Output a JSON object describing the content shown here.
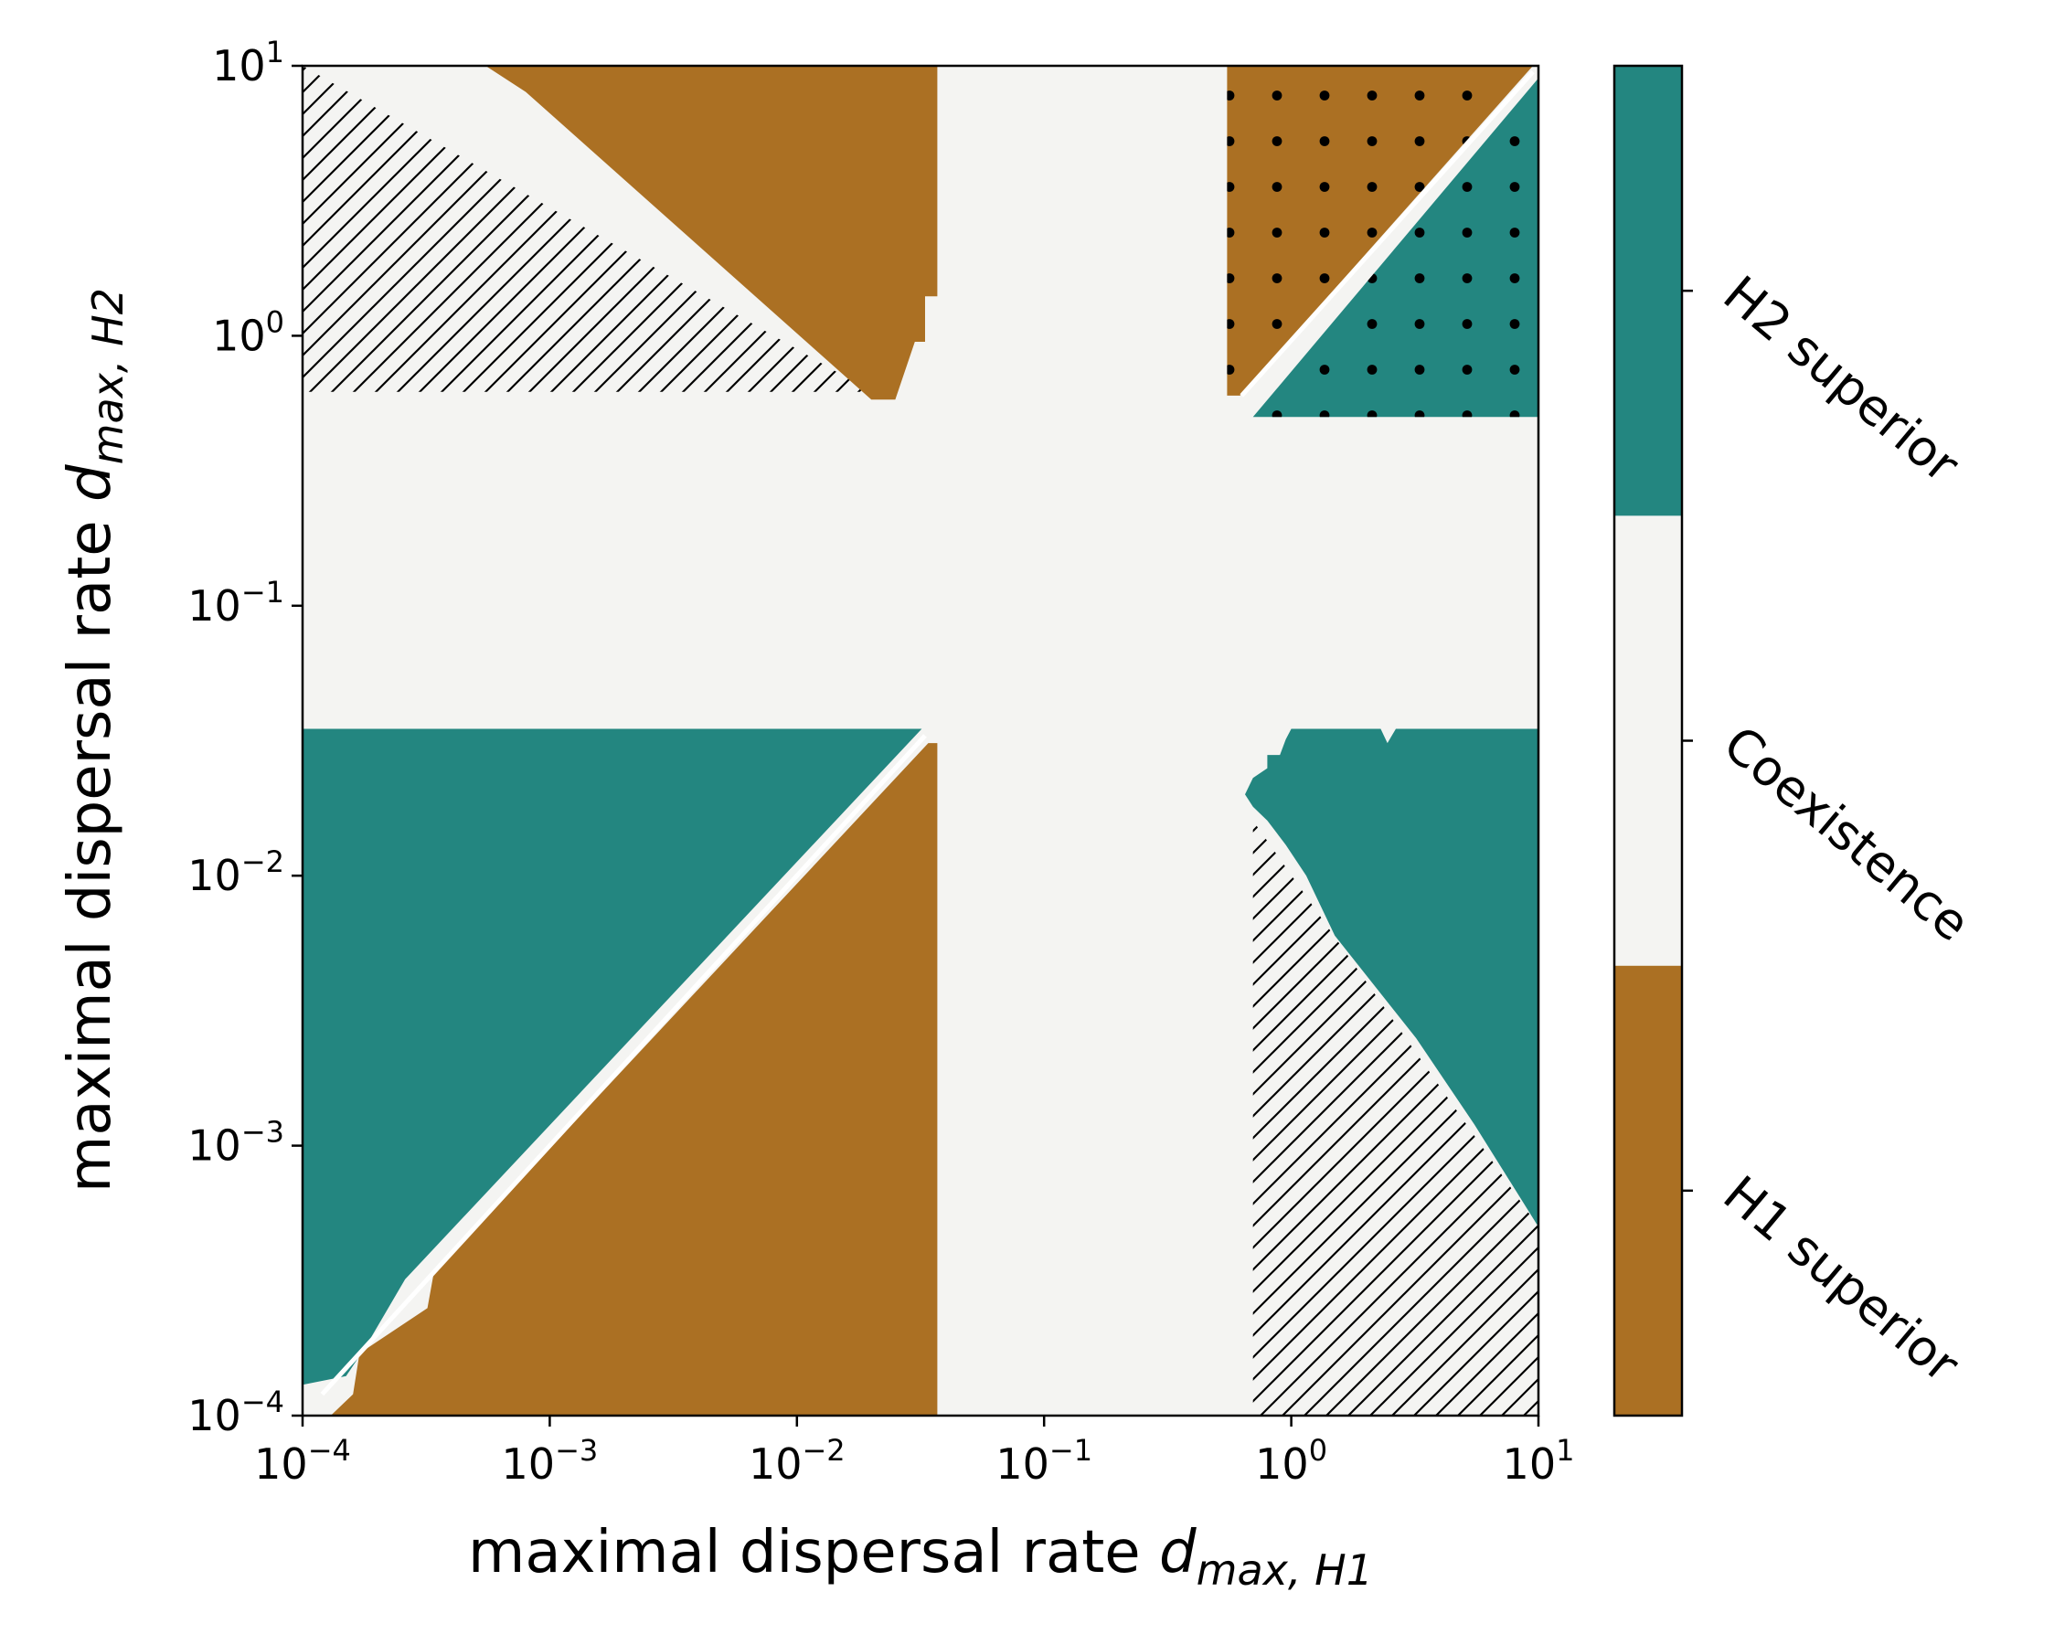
{
  "colors": {
    "h1": "#ab7023",
    "coexistence": "#f4f4f2",
    "h2": "#238680",
    "hatch_line": "#000000",
    "dot": "#000000",
    "boundary": "#ffffff"
  },
  "chart_data": {
    "type": "heatmap",
    "xscale": "log",
    "yscale": "log",
    "xlim": [
      0.0001,
      10
    ],
    "ylim": [
      0.0001,
      10
    ],
    "xlabel": {
      "prefix": "maximal dispersal rate ",
      "symbol": "d",
      "subscript": "max, H1"
    },
    "ylabel": {
      "prefix": "maximal dispersal rate ",
      "symbol": "d",
      "subscript": "max, H2"
    },
    "x_ticks": [
      {
        "value": 0.0001,
        "base": "10",
        "exp": "−4"
      },
      {
        "value": 0.001,
        "base": "10",
        "exp": "−3"
      },
      {
        "value": 0.01,
        "base": "10",
        "exp": "−2"
      },
      {
        "value": 0.1,
        "base": "10",
        "exp": "−1"
      },
      {
        "value": 1,
        "base": "10",
        "exp": "0"
      },
      {
        "value": 10,
        "base": "10",
        "exp": "1"
      }
    ],
    "y_ticks": [
      {
        "value": 0.0001,
        "base": "10",
        "exp": "−4"
      },
      {
        "value": 0.001,
        "base": "10",
        "exp": "−3"
      },
      {
        "value": 0.01,
        "base": "10",
        "exp": "−2"
      },
      {
        "value": 0.1,
        "base": "10",
        "exp": "−1"
      },
      {
        "value": 1,
        "base": "10",
        "exp": "0"
      },
      {
        "value": 10,
        "base": "10",
        "exp": "1"
      }
    ],
    "colorbar": {
      "categories": [
        "H1 superior",
        "Coexistence",
        "H2 superior"
      ],
      "color_keys": [
        "h1",
        "coexistence",
        "h2"
      ]
    },
    "regions": [
      {
        "outcome": "coexistence",
        "pattern": "none",
        "points": [
          [
            0.0001,
            0.0001
          ],
          [
            10,
            0.0001
          ],
          [
            10,
            10
          ],
          [
            0.0001,
            10
          ]
        ]
      },
      {
        "outcome": "none",
        "pattern": "hatch",
        "points": [
          [
            0.0001,
            0.62
          ],
          [
            0.02,
            0.62
          ],
          [
            0.0001,
            10
          ]
        ]
      },
      {
        "outcome": "h1",
        "pattern": "none",
        "points": [
          [
            0.00055,
            10
          ],
          [
            0.037,
            10
          ],
          [
            0.037,
            1.4
          ],
          [
            0.033,
            1.4
          ],
          [
            0.033,
            0.95
          ],
          [
            0.03,
            0.95
          ],
          [
            0.025,
            0.58
          ],
          [
            0.02,
            0.58
          ],
          [
            0.0008,
            8.0
          ]
        ]
      },
      {
        "outcome": "h2",
        "pattern": "none",
        "points": [
          [
            0.0001,
            0.035
          ],
          [
            0.032,
            0.035
          ],
          [
            0.00026,
            0.00032
          ],
          [
            0.00018,
            0.00018
          ],
          [
            0.00015,
            0.00014
          ],
          [
            0.0001,
            0.00013
          ]
        ]
      },
      {
        "outcome": "h1",
        "pattern": "none",
        "points": [
          [
            0.037,
            0.0001
          ],
          [
            0.037,
            0.031
          ],
          [
            0.034,
            0.031
          ],
          [
            0.00034,
            0.00034
          ],
          [
            0.00032,
            0.00025
          ],
          [
            0.00017,
            0.00017
          ],
          [
            0.00016,
            0.00012
          ],
          [
            0.00013,
            0.0001
          ]
        ]
      },
      {
        "outcome": "h1",
        "pattern": "dots",
        "points": [
          [
            0.55,
            10
          ],
          [
            9.5,
            10
          ],
          [
            0.62,
            0.6
          ],
          [
            0.55,
            0.6
          ]
        ]
      },
      {
        "outcome": "h2",
        "pattern": "dots",
        "points": [
          [
            10,
            9.0
          ],
          [
            10,
            0.5
          ],
          [
            0.7,
            0.5
          ]
        ]
      },
      {
        "outcome": "none",
        "pattern": "hatch",
        "points": [
          [
            0.7,
            0.016
          ],
          [
            0.7,
            0.0001
          ],
          [
            10,
            0.0001
          ],
          [
            10,
            0.0005
          ]
        ]
      },
      {
        "outcome": "h2",
        "pattern": "none",
        "points": [
          [
            1.0,
            0.035
          ],
          [
            2.3,
            0.035
          ],
          [
            2.45,
            0.031
          ],
          [
            2.65,
            0.035
          ],
          [
            10,
            0.035
          ],
          [
            10,
            0.0005
          ],
          [
            5.5,
            0.0012
          ],
          [
            3.2,
            0.0025
          ],
          [
            1.5,
            0.006
          ],
          [
            1.15,
            0.01
          ],
          [
            0.95,
            0.013
          ],
          [
            0.8,
            0.016
          ],
          [
            0.7,
            0.018
          ],
          [
            0.65,
            0.02
          ],
          [
            0.7,
            0.023
          ],
          [
            0.8,
            0.025
          ],
          [
            0.8,
            0.028
          ],
          [
            0.9,
            0.028
          ],
          [
            0.95,
            0.032
          ]
        ]
      }
    ],
    "boundaries": [
      {
        "points": [
          [
            0.00012,
            0.00012
          ],
          [
            0.033,
            0.033
          ]
        ]
      },
      {
        "points": [
          [
            0.63,
            0.6
          ],
          [
            9.5,
            9.5
          ]
        ]
      }
    ]
  }
}
